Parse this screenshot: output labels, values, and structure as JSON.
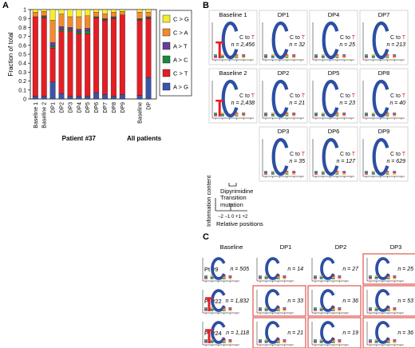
{
  "panels": {
    "a": {
      "letter": "A"
    },
    "b": {
      "letter": "B"
    },
    "c": {
      "letter": "C"
    }
  },
  "chart_data": {
    "type": "bar",
    "stacked": true,
    "ylabel": "Fraction of total",
    "ylim": [
      0,
      1
    ],
    "yticks": [
      "0",
      "0.1",
      "0.2",
      "0.3",
      "0.4",
      "0.5",
      "0.6",
      "0.7",
      "0.8",
      "0.9",
      "1"
    ],
    "categories": [
      "Baseline 1",
      "Baseline 2",
      "DP1",
      "DP2",
      "DP3",
      "DP4",
      "DP5",
      "DP6",
      "DP7",
      "DP8",
      "DP9",
      "Baseline",
      "DP"
    ],
    "group_labels": [
      {
        "label": "Patient #37",
        "from": 0,
        "to": 10
      },
      {
        "label": "All patients",
        "from": 11,
        "to": 12
      }
    ],
    "legend_position": "right",
    "series": [
      {
        "name": "A > G",
        "color": "#3a54a8",
        "values": [
          0.03,
          0.03,
          0.19,
          0.06,
          0.03,
          0.03,
          0.03,
          0.07,
          0.05,
          0.03,
          0.05,
          0.04,
          0.24
        ]
      },
      {
        "name": "C > T",
        "color": "#e31e24",
        "values": [
          0.89,
          0.88,
          0.38,
          0.7,
          0.73,
          0.7,
          0.7,
          0.84,
          0.83,
          0.87,
          0.89,
          0.84,
          0.66
        ]
      },
      {
        "name": "A > C",
        "color": "#1b8a3c",
        "values": [
          0.0,
          0.01,
          0.02,
          0.02,
          0.02,
          0.02,
          0.03,
          0.01,
          0.01,
          0.01,
          0.0,
          0.01,
          0.01
        ]
      },
      {
        "name": "A > T",
        "color": "#6a3d9a",
        "values": [
          0.0,
          0.01,
          0.04,
          0.03,
          0.02,
          0.03,
          0.03,
          0.0,
          0.01,
          0.01,
          0.0,
          0.01,
          0.01
        ]
      },
      {
        "name": "C > A",
        "color": "#f38a2c",
        "values": [
          0.05,
          0.05,
          0.25,
          0.14,
          0.12,
          0.14,
          0.14,
          0.05,
          0.05,
          0.05,
          0.04,
          0.07,
          0.05
        ]
      },
      {
        "name": "C > G",
        "color": "#f5ec2f",
        "values": [
          0.03,
          0.02,
          0.12,
          0.05,
          0.08,
          0.08,
          0.07,
          0.03,
          0.05,
          0.03,
          0.02,
          0.03,
          0.03
        ]
      }
    ]
  },
  "logos_b": [
    {
      "label": "Baseline 1",
      "sub": "C to T",
      "n": "n = 2,456"
    },
    {
      "label": "DP1",
      "sub": "C to T",
      "n": "n = 32"
    },
    {
      "label": "DP4",
      "sub": "C to T",
      "n": "n = 25"
    },
    {
      "label": "DP7",
      "sub": "C to T",
      "n": "n = 213"
    },
    {
      "label": "Baseline 2",
      "sub": "C to T",
      "n": "n = 2,438"
    },
    {
      "label": "DP2",
      "sub": "C to T",
      "n": "n = 21"
    },
    {
      "label": "DP5",
      "sub": "C to T",
      "n": "n = 23"
    },
    {
      "label": "DP8",
      "sub": "C to T",
      "n": "n = 40"
    },
    {
      "label": "DP3",
      "sub": "C to T",
      "n": "n = 35"
    },
    {
      "label": "DP6",
      "sub": "C to T",
      "n": "n = 127"
    },
    {
      "label": "DP9",
      "sub": "C to T",
      "n": "n = 629"
    }
  ],
  "legend_b": {
    "dipyrimidine": "Dipyrimidine",
    "information_content": "Information content",
    "transition_1": "Transition",
    "transition_2": "mutation",
    "positions": "−2 −1 0 +1 +2",
    "relative_positions": "Relative positions"
  },
  "grid_c": {
    "columns": [
      "Baseline",
      "DP1",
      "DP2",
      "DP3"
    ],
    "rows": [
      {
        "label": "Pt #9",
        "n": [
          "n = 505",
          "n = 14",
          "n = 27",
          "n = 25"
        ]
      },
      {
        "label": "Pt #22",
        "n": [
          "n = 1,832",
          "n = 33",
          "n = 36",
          "n = 53"
        ]
      },
      {
        "label": "Pt #24",
        "n": [
          "n = 1,118",
          "n = 21",
          "n = 19",
          "n = 36"
        ]
      }
    ]
  },
  "colors": {
    "logo_c": "#2c4fa3",
    "logo_t": "#e31e24",
    "highlight": "#d9342b"
  }
}
